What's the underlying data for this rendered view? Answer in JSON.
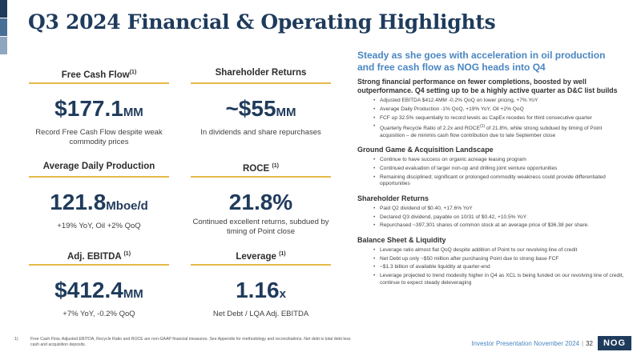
{
  "title": "Q3 2024 Financial & Operating Highlights",
  "accent_colors": [
    "#1f3b5c",
    "#4a6f96",
    "#8fa6bf"
  ],
  "metrics": {
    "fcf": {
      "heading": "Free Cash Flow",
      "sup": "(1)",
      "value": "$177.1",
      "unit": "MM",
      "desc": "Record Free Cash Flow despite weak commodity prices"
    },
    "shareholder": {
      "heading": "Shareholder Returns",
      "sup": "",
      "value": "~$55",
      "unit": "MM",
      "desc": "In dividends and share repurchases"
    },
    "production": {
      "heading": "Average Daily Production",
      "sup": "",
      "value": "121.8",
      "unit": "Mboe/d",
      "desc": "+19% YoY, Oil +2% QoQ"
    },
    "roce": {
      "heading": "ROCE",
      "sup": "(1)",
      "value": "21.8%",
      "unit": "",
      "desc": "Continued excellent returns, subdued by timing of Point close"
    },
    "ebitda": {
      "heading": "Adj. EBITDA",
      "sup": "(1)",
      "value": "$412.4",
      "unit": "MM",
      "desc": "+7% YoY, -0.2% QoQ"
    },
    "leverage": {
      "heading": "Leverage",
      "sup": "(1)",
      "value": "1.16",
      "unit": "x",
      "desc": "Net Debt / LQA Adj. EBITDA"
    }
  },
  "right": {
    "lead": "Steady as she goes with acceleration in oil production and free cash flow as NOG heads into Q4",
    "subhead": "Strong financial performance on fewer completions, boosted by well outperformance.  Q4 setting up to be a highly active quarter as D&C list builds",
    "bullets1": [
      "Adjusted EBITDA $412.4MM -0.2% QoQ on lower pricing, +7% YoY",
      "Average Daily Production -1% QoQ, +19% YoY, Oil +2% QoQ",
      "FCF up 32.5% sequentially to record levels as CapEx recedes for third consecutive quarter"
    ],
    "bullet_roce": {
      "pre": "Quarterly Recycle Ratio of 2.2x and ROCE",
      "sup": "(1)",
      "post": " of 21.8%, while strong subdued by timing of Point acquisition – de minimis cash flow contribution due to late September close"
    },
    "section2": "Ground Game & Acquisition Landscape",
    "bullets2": [
      "Continue to have success on organic acreage leasing program",
      "Continued evaluation of larger non-op and drilling joint venture opportunities",
      "Remaining disciplined; significant or prolonged commodity weakness could provide differentiated opportunities"
    ],
    "section3": "Shareholder Returns",
    "bullets3": [
      "Paid Q2 dividend of $0.40, +17.6% YoY",
      "Declared Q3 dividend, payable on 10/31 of $0.42, +10.5% YoY",
      "Repurchased ~397,301 shares of common stock at an average price of $36.38 per share."
    ],
    "section4": "Balance Sheet & Liquidity",
    "bullets4": [
      "Leverage ratio almost flat QoQ despite addition of Point to our revolving line of credit",
      "Net Debt up only ~$50 million after purchasing Point due to strong base FCF",
      "~$1.3 billion of available liquidity at quarter-end",
      "Leverage projected to trend modestly higher in Q4 as XCL is being funded on our revolving line of credit, continue to expect steady deleveraging"
    ]
  },
  "footnote": {
    "num": "1)",
    "text": "Free Cash Flow, Adjusted EBITDA, Recycle Ratio and ROCE are non-GAAP financial measures. See Appendix for methodology and reconciliations. Net debt is total debt less cash and acquisition deposits."
  },
  "footer": {
    "label": "Investor Presentation November 2024",
    "sep": "|",
    "page": "32"
  },
  "logo": "NOG"
}
